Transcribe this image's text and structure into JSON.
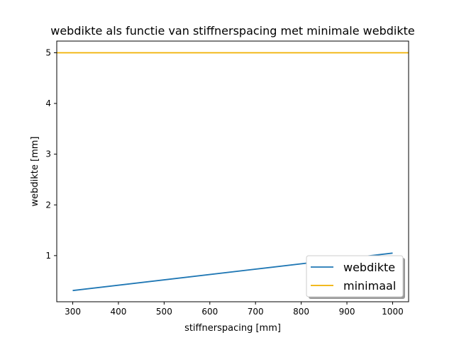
{
  "chart_data": {
    "type": "line",
    "title": "webdikte als functie van stiffnerspacing met minimale webdikte",
    "xlabel": "stiffnerspacing [mm]",
    "ylabel": "webdikte [mm]",
    "xlim": [
      265,
      1035
    ],
    "ylim": [
      0.09,
      5.23
    ],
    "xticks": [
      300,
      400,
      500,
      600,
      700,
      800,
      900,
      1000
    ],
    "yticks": [
      1,
      2,
      3,
      4,
      5
    ],
    "grid": false,
    "legend_position": "lower-right",
    "series": [
      {
        "name": "webdikte",
        "color": "#1f77b4",
        "x": [
          300,
          1000
        ],
        "y": [
          0.31,
          1.05
        ]
      },
      {
        "name": "minimaal",
        "color": "#f0b000",
        "x": [
          265,
          1035
        ],
        "y": [
          5.0,
          5.0
        ]
      }
    ]
  }
}
